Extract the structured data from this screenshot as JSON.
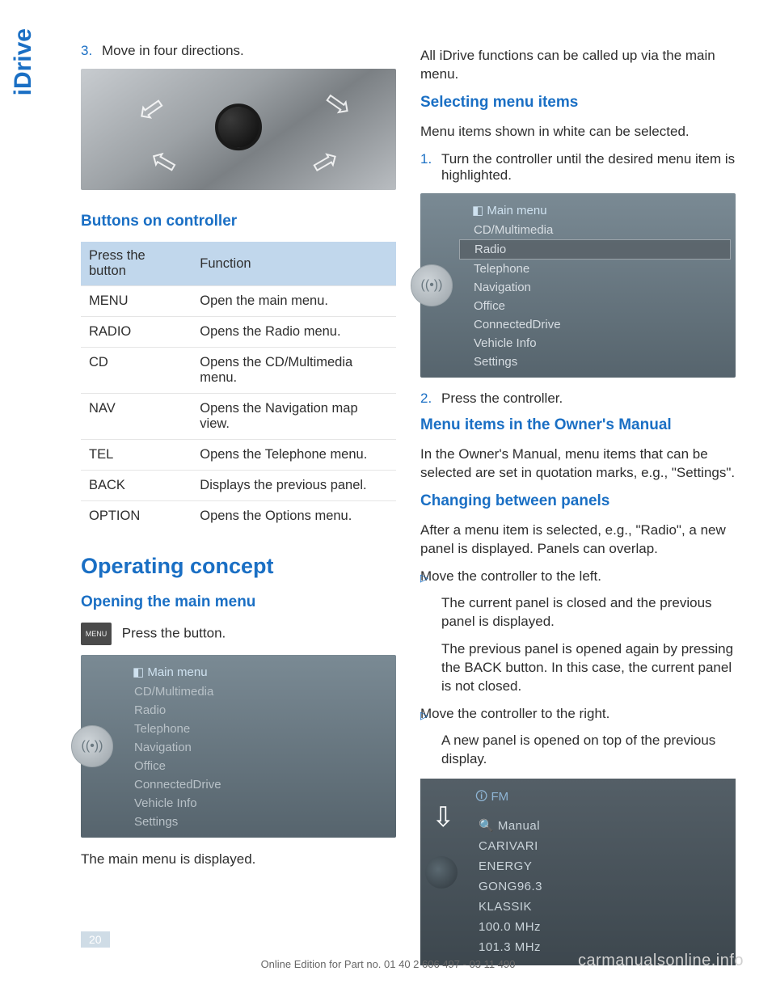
{
  "sideTab": "iDrive",
  "left": {
    "step3": {
      "num": "3.",
      "text": "Move in four directions."
    },
    "buttonsHeading": "Buttons on controller",
    "table": {
      "header": {
        "c1": "Press the button",
        "c2": "Function"
      },
      "rows": [
        {
          "btn": "MENU",
          "fn": "Open the main menu."
        },
        {
          "btn": "RADIO",
          "fn": "Opens the Radio menu."
        },
        {
          "btn": "CD",
          "fn": "Opens the CD/Multimedia menu."
        },
        {
          "btn": "NAV",
          "fn": "Opens the Navigation map view."
        },
        {
          "btn": "TEL",
          "fn": "Opens the Telephone menu."
        },
        {
          "btn": "BACK",
          "fn": "Displays the previous panel."
        },
        {
          "btn": "OPTION",
          "fn": "Opens the Options menu."
        }
      ]
    },
    "operatingHeading": "Operating concept",
    "openingHeading": "Opening the main menu",
    "menuIconLabel": "MENU",
    "pressButton": "Press the button.",
    "mainMenu": {
      "title": "Main menu",
      "items": [
        "CD/Multimedia",
        "Radio",
        "Telephone",
        "Navigation",
        "Office",
        "ConnectedDrive",
        "Vehicle Info",
        "Settings"
      ],
      "dialGlyph": "((•))"
    },
    "mainMenuDisplayed": "The main menu is displayed."
  },
  "right": {
    "intro": "All iDrive functions can be called up via the main menu.",
    "selectingHeading": "Selecting menu items",
    "selectingIntro": "Menu items shown in white can be selected.",
    "step1": {
      "num": "1.",
      "text": "Turn the controller until the desired menu item is highlighted."
    },
    "mainMenu": {
      "title": "Main menu",
      "items": [
        "CD/Multimedia",
        "Radio",
        "Telephone",
        "Navigation",
        "Office",
        "ConnectedDrive",
        "Vehicle Info",
        "Settings"
      ],
      "highlight": 1
    },
    "step2": {
      "num": "2.",
      "text": "Press the controller."
    },
    "ownerHeading": "Menu items in the Owner's Manual",
    "ownerText": "In the Owner's Manual, menu items that can be selected are set in quotation marks, e.g., \"Settings\".",
    "changingHeading": "Changing between panels",
    "changingIntro": "After a menu item is selected, e.g., \"Radio\", a new panel is displayed. Panels can overlap.",
    "bullets": [
      {
        "lead": "Move the controller to the left.",
        "p1": "The current panel is closed and the previous panel is displayed.",
        "p2": "The previous panel is opened again by pressing the BACK button. In this case, the current panel is not closed."
      },
      {
        "lead": "Move the controller to the right.",
        "p1": "A new panel is opened on top of the previous display."
      }
    ],
    "fmScreen": {
      "title": "FM",
      "items": [
        "🔍  Manual",
        "CARIVARI",
        "ENERGY",
        "GONG96.3",
        "KLASSIK",
        "100.0  MHz",
        "101.3  MHz"
      ]
    }
  },
  "pageNum": "20",
  "footer": "Online Edition for Part no. 01 40 2 606 497 - 03 11 490",
  "watermark": "carmanualsonline.info"
}
